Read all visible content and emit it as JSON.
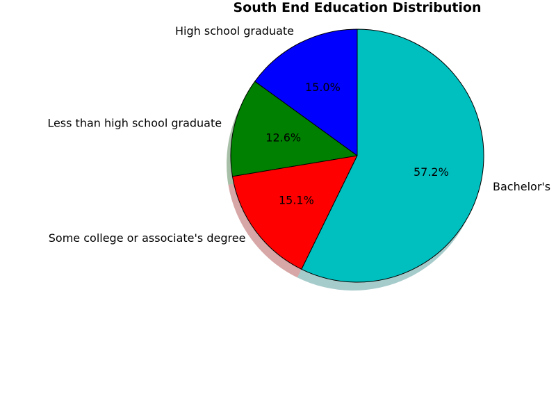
{
  "chart_data": {
    "type": "pie",
    "title": "South End Education Distribution",
    "start_angle_deg": 90,
    "direction": "counterclockwise",
    "shadow": true,
    "edge_color": "#000000",
    "slices": [
      {
        "label": "High school graduate",
        "value": 15.0,
        "pct_text": "15.0%",
        "color": "#0000ff"
      },
      {
        "label": "Less than high school graduate",
        "value": 12.6,
        "pct_text": "12.6%",
        "color": "#008000"
      },
      {
        "label": "Some college or associate's degree",
        "value": 15.1,
        "pct_text": "15.1%",
        "color": "#ff0000"
      },
      {
        "label": "Bachelor's",
        "value": 57.2,
        "pct_text": "57.2%",
        "color": "#00bfbf"
      }
    ]
  }
}
